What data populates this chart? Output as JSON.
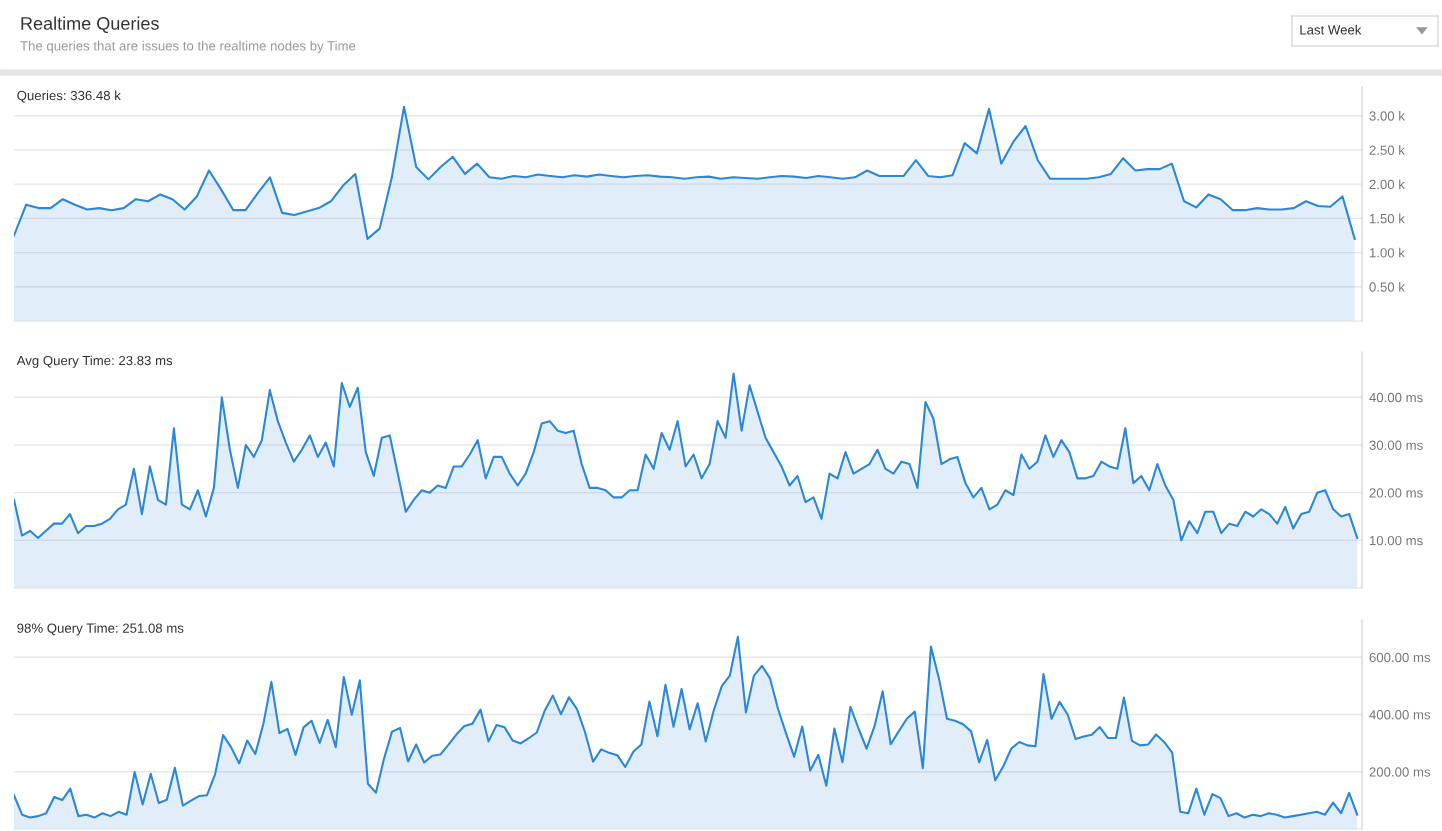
{
  "chart_data": [
    {
      "type": "area",
      "title": "Queries: 336.48 k",
      "color": "#2b88d9",
      "grid": "y",
      "tick_labels": "y",
      "annotations": [
        "Realtime Queries",
        "The queries that are issues to the realtime nodes by Time",
        "Last Week"
      ],
      "ylim": [
        0,
        3.42
      ],
      "yticks": [
        {
          "value": 0.5,
          "label": "0.50 k"
        },
        {
          "value": 1.0,
          "label": "1.00 k"
        },
        {
          "value": 1.5,
          "label": "1.50 k"
        },
        {
          "value": 2.0,
          "label": "2.00 k"
        },
        {
          "value": 2.5,
          "label": "2.50 k"
        },
        {
          "value": 3.0,
          "label": "3.00 k"
        }
      ],
      "categories": [
        null,
        null,
        null,
        null,
        null,
        null,
        null,
        null,
        null,
        null,
        null,
        null,
        null,
        null,
        null,
        null,
        null,
        null,
        null,
        null,
        null,
        null,
        null,
        null,
        null,
        null,
        null,
        null,
        null,
        null,
        null,
        null,
        null,
        null,
        null,
        null,
        null,
        null,
        null,
        null,
        null,
        null,
        null,
        null,
        null,
        null,
        null,
        null,
        null,
        null,
        null,
        null,
        null,
        null,
        null,
        null,
        null,
        null,
        null,
        null,
        null,
        null,
        null,
        null,
        null,
        null,
        null,
        null,
        null,
        null,
        null,
        null,
        null,
        null,
        null,
        null,
        null,
        null,
        null,
        null,
        null,
        null,
        null,
        null,
        null,
        null,
        null,
        null,
        null,
        null,
        null,
        null,
        null,
        null,
        null,
        null,
        null,
        null,
        null,
        null,
        null,
        null,
        null,
        null,
        null,
        null,
        null,
        null,
        null,
        null,
        null
      ],
      "values": [
        1.25,
        1.7,
        1.65,
        1.65,
        1.78,
        1.7,
        1.63,
        1.65,
        1.62,
        1.65,
        1.78,
        1.75,
        1.85,
        1.78,
        1.63,
        1.82,
        2.2,
        1.92,
        1.62,
        1.62,
        1.87,
        2.1,
        1.58,
        1.55,
        1.6,
        1.65,
        1.75,
        1.98,
        2.15,
        1.2,
        1.35,
        2.1,
        3.13,
        2.25,
        2.07,
        2.25,
        2.4,
        2.15,
        2.3,
        2.1,
        2.08,
        2.12,
        2.1,
        2.14,
        2.12,
        2.1,
        2.13,
        2.11,
        2.14,
        2.12,
        2.1,
        2.12,
        2.13,
        2.11,
        2.1,
        2.08,
        2.1,
        2.11,
        2.08,
        2.1,
        2.09,
        2.08,
        2.1,
        2.12,
        2.11,
        2.09,
        2.12,
        2.1,
        2.08,
        2.1,
        2.2,
        2.12,
        2.12,
        2.12,
        2.35,
        2.12,
        2.1,
        2.13,
        2.6,
        2.45,
        3.1,
        2.3,
        2.62,
        2.85,
        2.35,
        2.08,
        2.08,
        2.08,
        2.08,
        2.1,
        2.15,
        2.38,
        2.2,
        2.22,
        2.22,
        2.3,
        1.75,
        1.66,
        1.85,
        1.78,
        1.62,
        1.62,
        1.65,
        1.63,
        1.63,
        1.65,
        1.75,
        1.68,
        1.67,
        1.82,
        1.2
      ]
    },
    {
      "type": "area",
      "title": "Avg Query Time: 23.83 ms",
      "color": "#2b88d9",
      "grid": "y",
      "tick_labels": "y",
      "ylim": [
        0,
        49.5
      ],
      "yticks": [
        {
          "value": 10,
          "label": "10.00 ms"
        },
        {
          "value": 20,
          "label": "20.00 ms"
        },
        {
          "value": 30,
          "label": "30.00 ms"
        },
        {
          "value": 40,
          "label": "40.00 ms"
        }
      ],
      "categories": [
        null,
        null,
        null,
        null,
        null,
        null,
        null,
        null,
        null,
        null,
        null,
        null,
        null,
        null,
        null,
        null,
        null,
        null,
        null,
        null,
        null,
        null,
        null,
        null,
        null,
        null,
        null,
        null,
        null,
        null,
        null,
        null,
        null,
        null,
        null,
        null,
        null,
        null,
        null,
        null,
        null,
        null,
        null,
        null,
        null,
        null,
        null,
        null,
        null,
        null,
        null,
        null,
        null,
        null,
        null,
        null,
        null,
        null,
        null,
        null,
        null,
        null,
        null,
        null,
        null,
        null,
        null,
        null,
        null,
        null,
        null,
        null,
        null,
        null,
        null,
        null,
        null,
        null,
        null,
        null,
        null,
        null,
        null,
        null,
        null,
        null,
        null,
        null,
        null,
        null,
        null,
        null,
        null,
        null,
        null,
        null,
        null,
        null,
        null,
        null,
        null,
        null,
        null,
        null,
        null,
        null,
        null,
        null,
        null,
        null,
        null,
        null,
        null,
        null,
        null,
        null,
        null,
        null,
        null,
        null,
        null,
        null,
        null,
        null,
        null,
        null,
        null,
        null,
        null,
        null,
        null,
        null,
        null,
        null,
        null,
        null,
        null,
        null,
        null,
        null,
        null,
        null,
        null,
        null,
        null,
        null,
        null,
        null,
        null,
        null,
        null,
        null,
        null,
        null,
        null,
        null,
        null,
        null,
        null,
        null,
        null,
        null,
        null,
        null,
        null,
        null,
        null,
        null,
        null
      ],
      "values": [
        18.5,
        11,
        12,
        10.5,
        12,
        13.5,
        13.5,
        15.5,
        11.5,
        13,
        13,
        13.5,
        14.5,
        16.5,
        17.5,
        25,
        15.5,
        25.5,
        18.5,
        17.5,
        33.5,
        17.5,
        16.5,
        20.5,
        15,
        21,
        40,
        29,
        21,
        30,
        27.5,
        31,
        41.5,
        35,
        30.5,
        26.5,
        29,
        32,
        27.5,
        30.5,
        25.5,
        43,
        38,
        42,
        28.5,
        23.5,
        31.5,
        32,
        24,
        16,
        18.5,
        20.5,
        20,
        21.5,
        21,
        25.5,
        25.5,
        28,
        31,
        23,
        27.5,
        27.5,
        24,
        21.5,
        24,
        28.5,
        34.5,
        35,
        33,
        32.5,
        33,
        26,
        21,
        21,
        20.5,
        19,
        19,
        20.5,
        20.5,
        28,
        25,
        32.5,
        29,
        35,
        25.5,
        28,
        23,
        26,
        35,
        31.5,
        45,
        33,
        42.5,
        37,
        31.5,
        28.5,
        25.5,
        21.5,
        23.5,
        18,
        19,
        14.5,
        24,
        23,
        28.5,
        24,
        25,
        26,
        29,
        25,
        24,
        26.5,
        26,
        21,
        39,
        35.5,
        26,
        27,
        27.5,
        22,
        19,
        21,
        16.5,
        17.5,
        20.5,
        19.5,
        28,
        25,
        26.5,
        32,
        27.5,
        31,
        28.5,
        23,
        23,
        23.5,
        26.5,
        25.5,
        25,
        33.5,
        22,
        23.5,
        20.5,
        26,
        21.5,
        18.5,
        10,
        14,
        11.5,
        16,
        16,
        11.5,
        13.5,
        13,
        16,
        15,
        16.5,
        15.5,
        13.5,
        17,
        12.5,
        15.5,
        16,
        20,
        20.5,
        16.5,
        15,
        15.5,
        10.5
      ]
    },
    {
      "type": "area",
      "title": "98% Query Time: 251.08 ms",
      "color": "#2b88d9",
      "grid": "y",
      "tick_labels": "y",
      "ylim": [
        0,
        730
      ],
      "yticks": [
        {
          "value": 200,
          "label": "200.00 ms"
        },
        {
          "value": 400,
          "label": "400.00 ms"
        },
        {
          "value": 600,
          "label": "600.00 ms"
        }
      ],
      "categories": [
        null,
        null,
        null,
        null,
        null,
        null,
        null,
        null,
        null,
        null,
        null,
        null,
        null,
        null,
        null,
        null,
        null,
        null,
        null,
        null,
        null,
        null,
        null,
        null,
        null,
        null,
        null,
        null,
        null,
        null,
        null,
        null,
        null,
        null,
        null,
        null,
        null,
        null,
        null,
        null,
        null,
        null,
        null,
        null,
        null,
        null,
        null,
        null,
        null,
        null,
        null,
        null,
        null,
        null,
        null,
        null,
        null,
        null,
        null,
        null,
        null,
        null,
        null,
        null,
        null,
        null,
        null,
        null,
        null,
        null,
        null,
        null,
        null,
        null,
        null,
        null,
        null,
        null,
        null,
        null,
        null,
        null,
        null,
        null,
        null,
        null,
        null,
        null,
        null,
        null,
        null,
        null,
        null,
        null,
        null,
        null,
        null,
        null,
        null,
        null,
        null,
        null,
        null,
        null,
        null,
        null,
        null,
        null,
        null,
        null,
        null,
        null,
        null,
        null,
        null,
        null,
        null,
        null,
        null,
        null,
        null,
        null,
        null,
        null,
        null,
        null,
        null,
        null,
        null,
        null,
        null,
        null,
        null,
        null,
        null,
        null,
        null,
        null,
        null,
        null,
        null,
        null,
        null,
        null,
        null,
        null,
        null,
        null,
        null,
        null,
        null,
        null,
        null,
        null,
        null,
        null,
        null,
        null,
        null,
        null,
        null,
        null,
        null,
        null,
        null,
        null,
        null,
        null
      ],
      "values": [
        118,
        50,
        40,
        45,
        55,
        112,
        101,
        141,
        45,
        50,
        40,
        55,
        45,
        60,
        50,
        199,
        86,
        193,
        91,
        102,
        214,
        82,
        99,
        115,
        118,
        191,
        328,
        285,
        229,
        309,
        262,
        367,
        514,
        335,
        350,
        259,
        355,
        378,
        301,
        381,
        286,
        531,
        399,
        519,
        158,
        127,
        245,
        340,
        353,
        236,
        295,
        232,
        256,
        260,
        294,
        330,
        360,
        368,
        417,
        306,
        363,
        355,
        309,
        299,
        317,
        337,
        414,
        466,
        401,
        460,
        419,
        338,
        235,
        278,
        266,
        258,
        217,
        270,
        295,
        445,
        324,
        504,
        357,
        489,
        348,
        439,
        306,
        414,
        499,
        536,
        671,
        407,
        536,
        570,
        526,
        419,
        333,
        252,
        358,
        204,
        259,
        151,
        351,
        233,
        427,
        351,
        281,
        360,
        481,
        296,
        341,
        385,
        410,
        212,
        637,
        526,
        385,
        378,
        366,
        341,
        233,
        311,
        170,
        219,
        281,
        304,
        292,
        289,
        541,
        385,
        444,
        400,
        314,
        323,
        329,
        356,
        318,
        318,
        459,
        308,
        292,
        295,
        330,
        304,
        267,
        60,
        55,
        141,
        50,
        122,
        108,
        45,
        55,
        40,
        50,
        45,
        55,
        50,
        40,
        45,
        50,
        55,
        60,
        50,
        92,
        55,
        126,
        50
      ]
    }
  ]
}
